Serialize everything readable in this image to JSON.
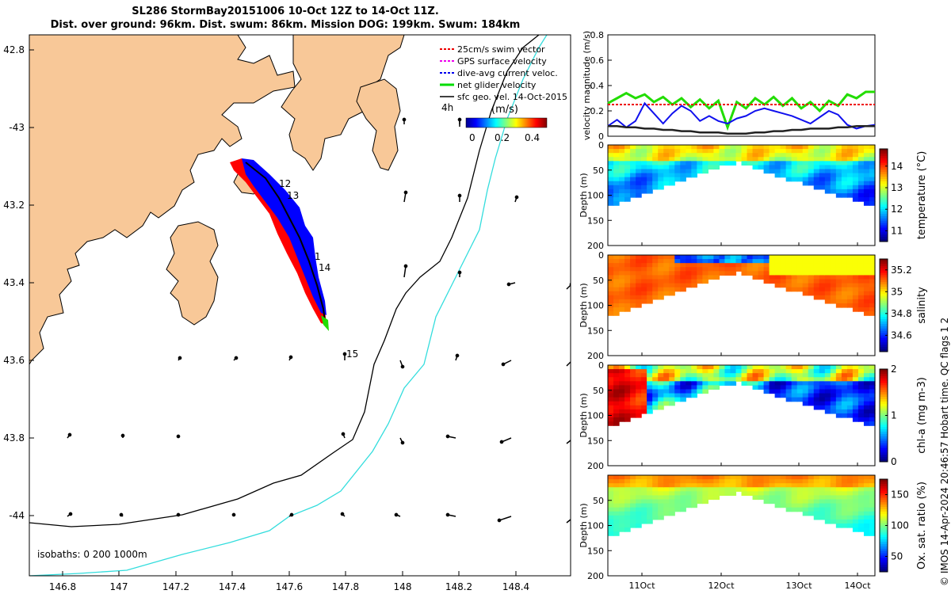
{
  "title": {
    "line1": "SL286 StormBay20151006 10-Oct 12Z to 14-Oct 11Z.",
    "line2": "Dist. over ground: 96km. Dist. swum: 86km. Mission DOG: 199km. Swum: 184km"
  },
  "map": {
    "lon_ticks": [
      "146.8",
      "147",
      "147.2",
      "147.4",
      "147.6",
      "147.8",
      "148",
      "148.2",
      "148.4"
    ],
    "lat_ticks": [
      "42.8",
      "-43",
      "43.2",
      "43.4",
      "43.6",
      "43.8",
      "-44"
    ],
    "legend": [
      {
        "label": "25cm/s swim vector",
        "color": "#ee0000"
      },
      {
        "label": "GPS surface velocity",
        "color": "#ee00ee"
      },
      {
        "label": "dive-avg current veloc.",
        "color": "#0000ee"
      },
      {
        "label": "net glider velocity",
        "color": "#00dd00"
      },
      {
        "label": "sfc geo. vel. 14-Oct-2015",
        "color": "#000000"
      }
    ],
    "colorbar": {
      "label": "4h",
      "units": "(m/s)",
      "ticks": [
        "0",
        "0.2",
        "0.4"
      ]
    },
    "day_labels": [
      "12",
      "13",
      "1",
      "14",
      "15"
    ],
    "isobaths_label": "isobaths: 0   200  1000m",
    "colors": {
      "land": "#f8c898",
      "sea": "#ffffff",
      "isobath200": "#000000",
      "isobath1000": "#33dddd",
      "track_red": "#ff0000",
      "track_blue": "#0000ff"
    }
  },
  "chart_data": [
    {
      "type": "line",
      "title": "",
      "ylabel": "velocity magnitude (m/s)",
      "ylim": [
        0,
        0.8
      ],
      "yticks": [
        "0",
        "0.2",
        "0.4",
        "0.6",
        "0.8"
      ],
      "xlabels": [
        "11Oct",
        "12Oct",
        "13Oct",
        "14Oct"
      ],
      "series": [
        {
          "name": "net glider velocity",
          "color": "#22dd00",
          "values": [
            0.26,
            0.3,
            0.34,
            0.3,
            0.33,
            0.27,
            0.31,
            0.25,
            0.3,
            0.23,
            0.29,
            0.22,
            0.28,
            0.07,
            0.27,
            0.22,
            0.3,
            0.25,
            0.31,
            0.24,
            0.3,
            0.22,
            0.27,
            0.2,
            0.28,
            0.24,
            0.33,
            0.3,
            0.35,
            0.35
          ]
        },
        {
          "name": "25cm/s swim vector",
          "color": "#ee0000",
          "values": [
            0.25,
            0.25,
            0.25,
            0.25,
            0.25,
            0.25,
            0.25,
            0.25,
            0.25,
            0.25,
            0.25,
            0.25,
            0.25,
            0.25,
            0.25,
            0.25,
            0.25,
            0.25,
            0.25,
            0.25,
            0.25,
            0.25,
            0.25,
            0.25,
            0.25,
            0.25,
            0.25,
            0.25,
            0.25,
            0.25
          ]
        },
        {
          "name": "dive-avg current veloc.",
          "color": "#1010ee",
          "values": [
            0.08,
            0.13,
            0.07,
            0.12,
            0.26,
            0.18,
            0.1,
            0.18,
            0.24,
            0.2,
            0.12,
            0.16,
            0.12,
            0.1,
            0.14,
            0.16,
            0.2,
            0.22,
            0.2,
            0.18,
            0.16,
            0.13,
            0.1,
            0.15,
            0.2,
            0.17,
            0.09,
            0.06,
            0.08,
            0.09
          ]
        },
        {
          "name": "sfc geo. vel.",
          "color": "#222222",
          "values": [
            0.08,
            0.08,
            0.07,
            0.07,
            0.06,
            0.06,
            0.05,
            0.05,
            0.04,
            0.04,
            0.03,
            0.03,
            0.03,
            0.02,
            0.02,
            0.02,
            0.03,
            0.03,
            0.04,
            0.04,
            0.05,
            0.05,
            0.06,
            0.06,
            0.06,
            0.07,
            0.07,
            0.08,
            0.08,
            0.08
          ]
        }
      ]
    },
    {
      "type": "heatmap",
      "ylabel": "Depth (m)",
      "clabel": "temperature (°C)",
      "ylim": [
        0,
        200
      ],
      "yticks": [
        "0",
        "50",
        "100",
        "150",
        "200"
      ],
      "cticks": [
        "11",
        "12",
        "13",
        "14"
      ],
      "clim": [
        10.5,
        14.8
      ]
    },
    {
      "type": "heatmap",
      "ylabel": "Depth (m)",
      "clabel": "salinity",
      "ylim": [
        0,
        200
      ],
      "yticks": [
        "0",
        "50",
        "100",
        "150",
        "200"
      ],
      "cticks": [
        "34.6",
        "34.8",
        "35",
        "35.2"
      ],
      "clim": [
        34.45,
        35.3
      ]
    },
    {
      "type": "heatmap",
      "ylabel": "Depth (m)",
      "clabel": "chl-a (mg m-3)",
      "ylim": [
        0,
        200
      ],
      "yticks": [
        "0",
        "50",
        "100",
        "150",
        "200"
      ],
      "cticks": [
        "0",
        "1",
        "2"
      ],
      "clim": [
        0,
        2
      ]
    },
    {
      "type": "heatmap",
      "ylabel": "Depth (m)",
      "clabel": "Ox. sat. ratio (%)",
      "ylim": [
        0,
        200
      ],
      "yticks": [
        "50",
        "100",
        "150",
        "200"
      ],
      "cticks": [
        "50",
        "100",
        "150"
      ],
      "clim": [
        25,
        175
      ]
    }
  ],
  "copyright": "© IMOS 14-Apr-2024 20:46:57 Hobart time. QC flags 1  2"
}
